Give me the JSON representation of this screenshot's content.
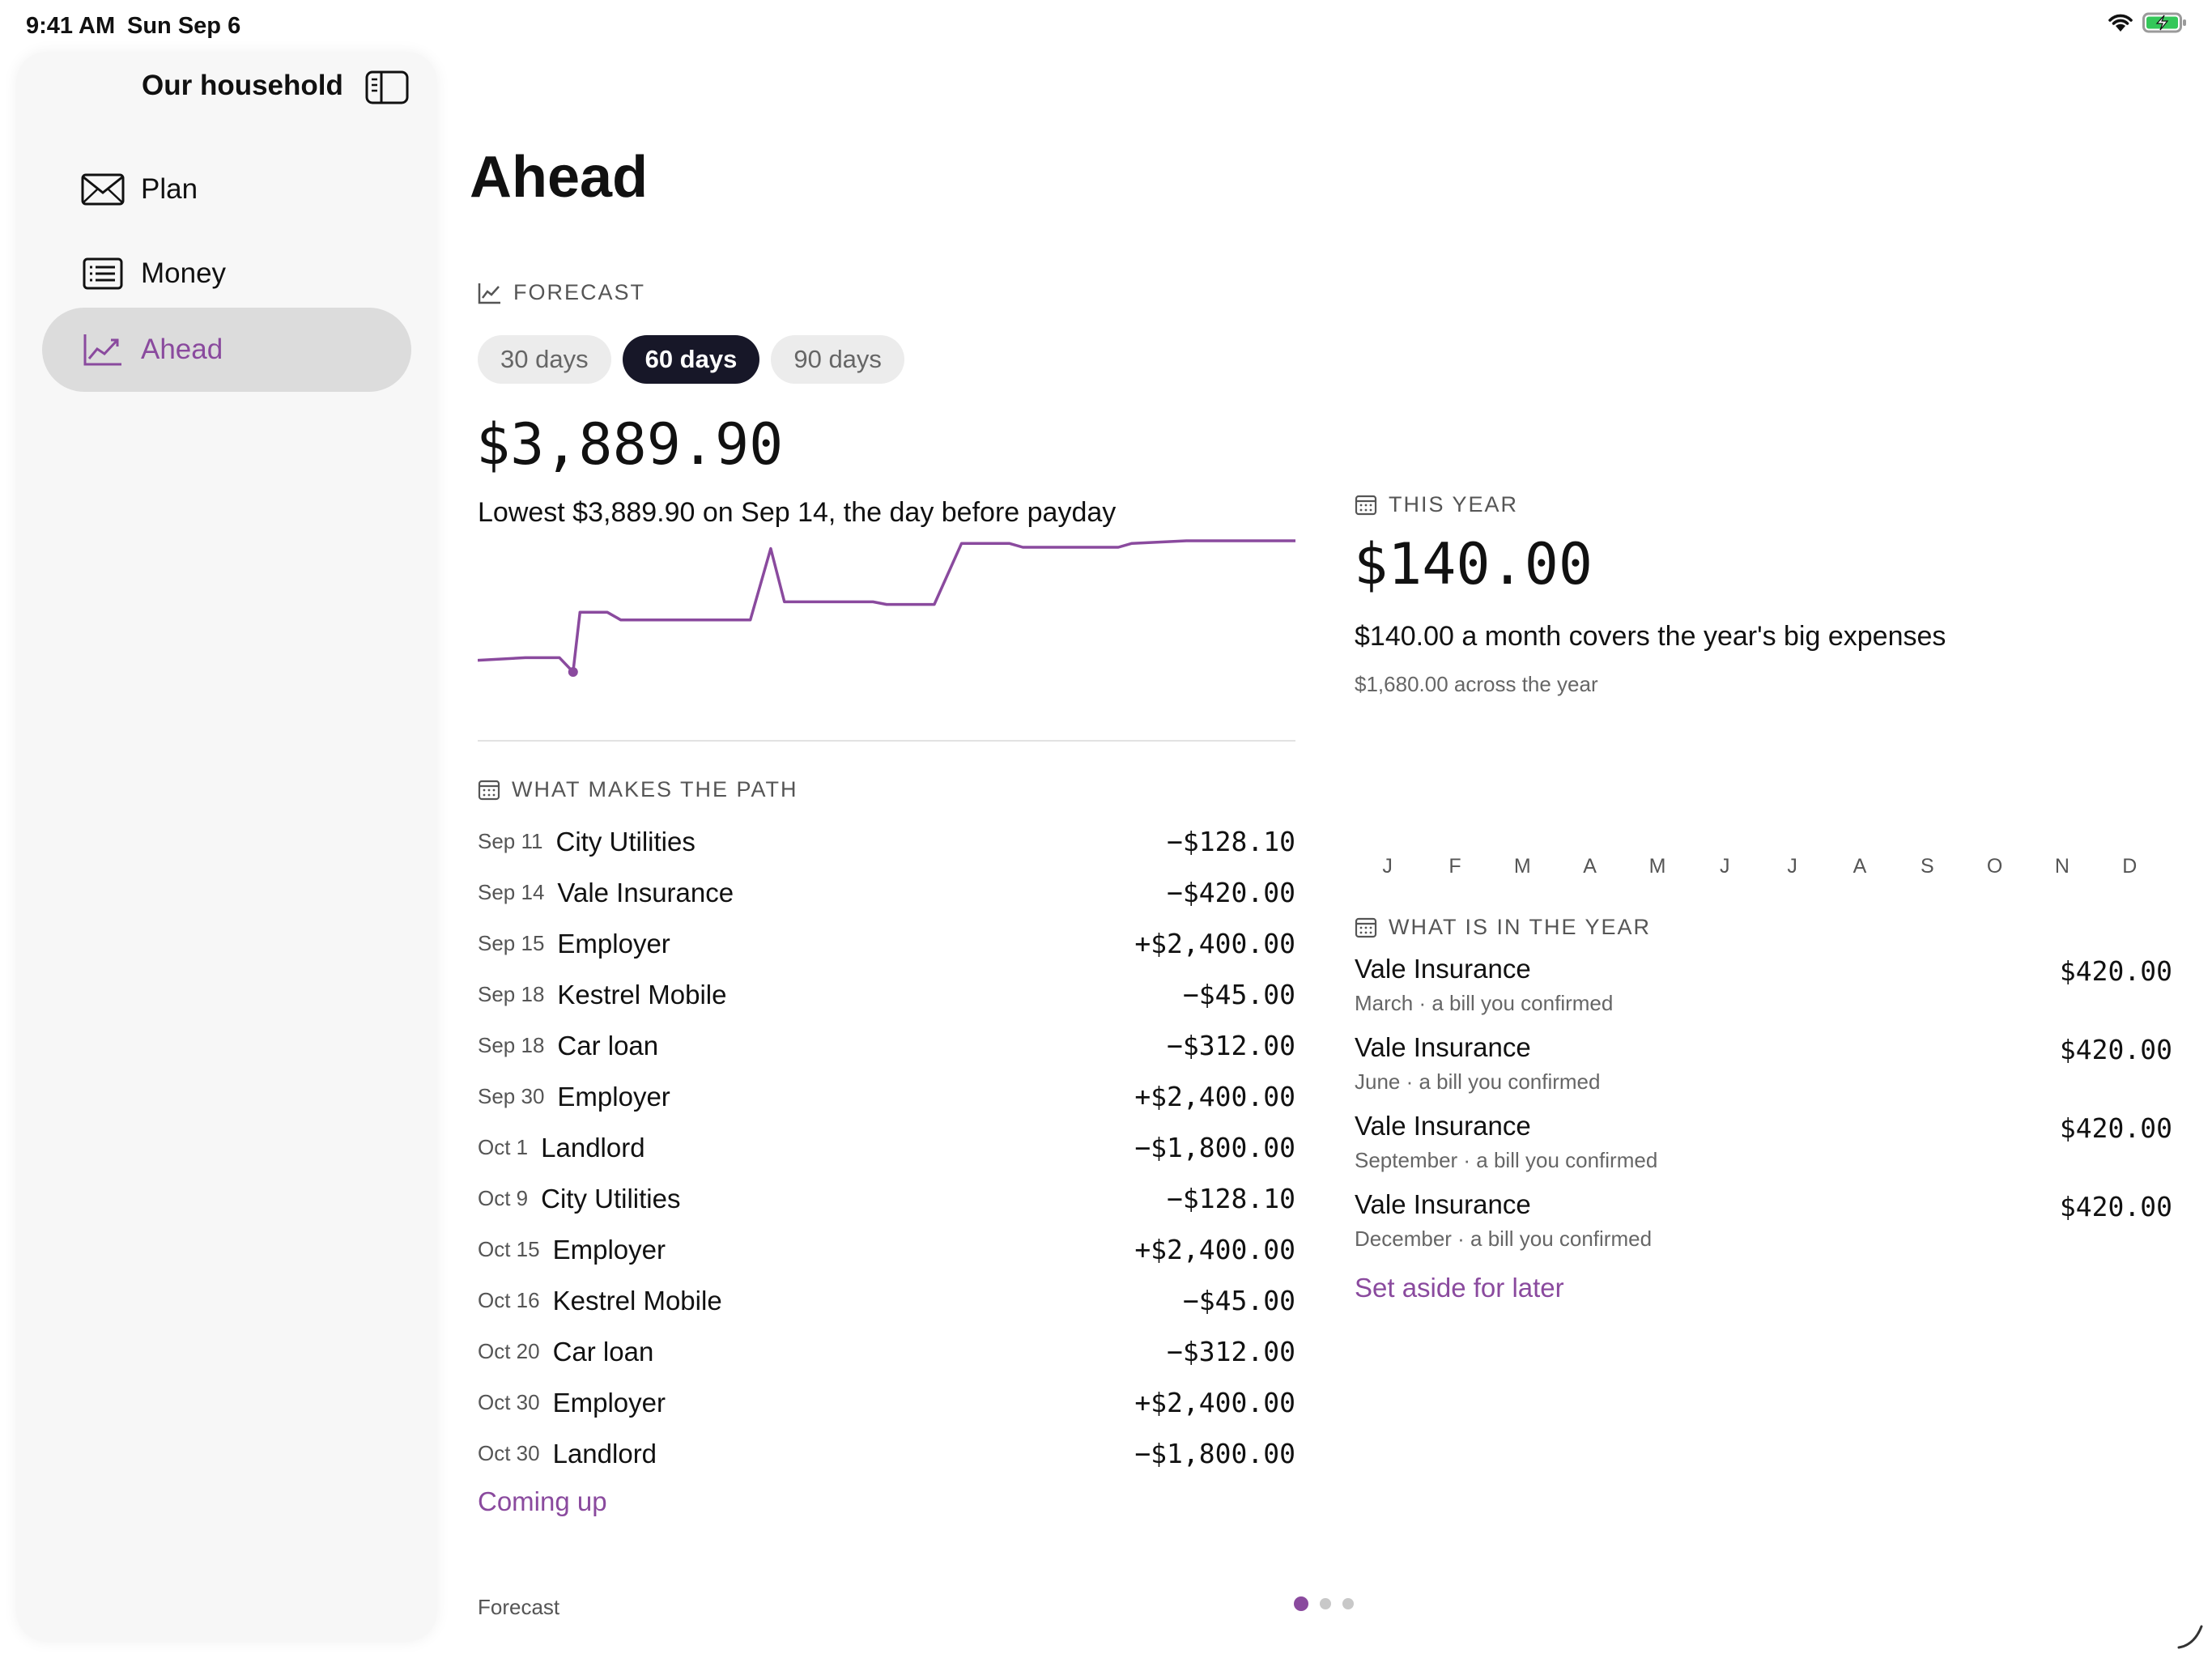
{
  "status_bar": {
    "time": "9:41 AM",
    "date": "Sun Sep 6"
  },
  "sidebar": {
    "title": "Our household",
    "items": [
      {
        "label": "Plan",
        "icon": "envelope-icon",
        "active": false
      },
      {
        "label": "Money",
        "icon": "list-icon",
        "active": false
      },
      {
        "label": "Ahead",
        "icon": "chart-line-icon",
        "active": true
      }
    ]
  },
  "main": {
    "title": "Ahead",
    "forecast": {
      "section_label": "FORECAST",
      "ranges": [
        "30 days",
        "60 days",
        "90 days"
      ],
      "selected_range": "60 days",
      "amount": "$3,889.90",
      "summary": "Lowest $3,889.90 on Sep 14, the day before payday"
    },
    "this_year": {
      "section_label": "THIS YEAR",
      "amount": "$140.00",
      "summary": "$140.00 a month covers the year's big expenses",
      "detail": "$1,680.00 across the year",
      "months": [
        "J",
        "F",
        "M",
        "A",
        "M",
        "J",
        "J",
        "A",
        "S",
        "O",
        "N",
        "D"
      ]
    },
    "path": {
      "section_label": "WHAT MAKES THE PATH",
      "rows": [
        {
          "date": "Sep 11",
          "payee": "City Utilities",
          "amount": "−$128.10"
        },
        {
          "date": "Sep 14",
          "payee": "Vale Insurance",
          "amount": "−$420.00"
        },
        {
          "date": "Sep 15",
          "payee": "Employer",
          "amount": "+$2,400.00"
        },
        {
          "date": "Sep 18",
          "payee": "Kestrel Mobile",
          "amount": "−$45.00"
        },
        {
          "date": "Sep 18",
          "payee": "Car loan",
          "amount": "−$312.00"
        },
        {
          "date": "Sep 30",
          "payee": "Employer",
          "amount": "+$2,400.00"
        },
        {
          "date": "Oct 1",
          "payee": "Landlord",
          "amount": "−$1,800.00"
        },
        {
          "date": "Oct 9",
          "payee": "City Utilities",
          "amount": "−$128.10"
        },
        {
          "date": "Oct 15",
          "payee": "Employer",
          "amount": "+$2,400.00"
        },
        {
          "date": "Oct 16",
          "payee": "Kestrel Mobile",
          "amount": "−$45.00"
        },
        {
          "date": "Oct 20",
          "payee": "Car loan",
          "amount": "−$312.00"
        },
        {
          "date": "Oct 30",
          "payee": "Employer",
          "amount": "+$2,400.00"
        },
        {
          "date": "Oct 30",
          "payee": "Landlord",
          "amount": "−$1,800.00"
        }
      ],
      "link": "Coming up"
    },
    "year_items": {
      "section_label": "WHAT IS IN THE YEAR",
      "rows": [
        {
          "name": "Vale Insurance",
          "detail": "March · a bill you confirmed",
          "amount": "$420.00"
        },
        {
          "name": "Vale Insurance",
          "detail": "June · a bill you confirmed",
          "amount": "$420.00"
        },
        {
          "name": "Vale Insurance",
          "detail": "September · a bill you confirmed",
          "amount": "$420.00"
        },
        {
          "name": "Vale Insurance",
          "detail": "December · a bill you confirmed",
          "amount": "$420.00"
        }
      ],
      "link": "Set aside for later"
    },
    "footer": {
      "label": "Forecast",
      "pages": 3,
      "current_page": 1
    }
  },
  "colors": {
    "accent": "#8a4a9e",
    "selected_segment": "#171728"
  },
  "chart_data": {
    "type": "line",
    "title": "",
    "xlabel": "",
    "ylabel": "",
    "series": [
      {
        "values": [
          [
            0,
            0.1
          ],
          [
            3.5,
            0.12
          ],
          [
            6,
            0.12
          ],
          [
            7,
            0.01
          ],
          [
            7.5,
            0.47
          ],
          [
            9.5,
            0.47
          ],
          [
            10.5,
            0.41
          ],
          [
            20,
            0.41
          ],
          [
            21.5,
            0.96
          ],
          [
            22.5,
            0.55
          ],
          [
            29,
            0.55
          ],
          [
            30,
            0.53
          ],
          [
            33.5,
            0.53
          ],
          [
            35.5,
            1.0
          ],
          [
            39,
            1.0
          ],
          [
            40,
            0.97
          ],
          [
            47,
            0.97
          ],
          [
            48,
            1.0
          ],
          [
            52,
            1.02
          ],
          [
            60,
            1.02
          ]
        ]
      }
    ],
    "markers": [
      [
        7,
        0.01
      ]
    ],
    "grid": false,
    "legend": "none"
  }
}
